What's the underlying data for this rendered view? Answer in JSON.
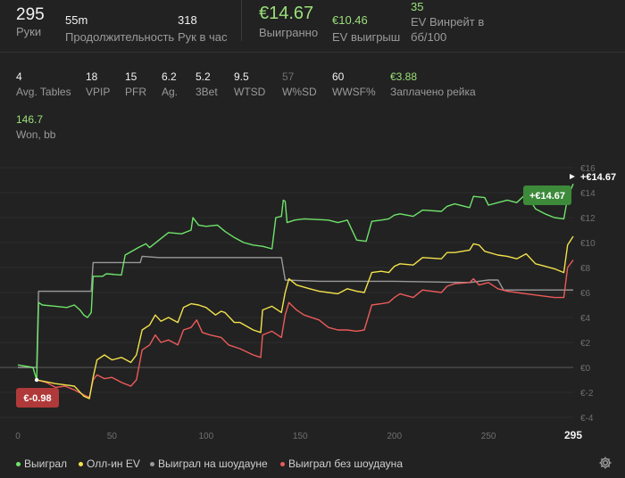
{
  "header": {
    "hands": {
      "value": "295",
      "label": "Руки"
    },
    "duration": {
      "value": "55m",
      "label": "Продолжительность"
    },
    "hands_per_hour": {
      "value": "318",
      "label": "Рук в час"
    },
    "won": {
      "value": "€14.67",
      "label": "Выигранно"
    },
    "ev_won": {
      "value": "€10.46",
      "label": "EV выигрыш"
    },
    "ev_winrate": {
      "value": "35",
      "label_line1": "EV Винрейт в",
      "label_line2": "бб/100"
    }
  },
  "stats": [
    {
      "value": "4",
      "label": "Avg. Tables"
    },
    {
      "value": "18",
      "label": "VPIP"
    },
    {
      "value": "15",
      "label": "PFR"
    },
    {
      "value": "6.2",
      "label": "Ag."
    },
    {
      "value": "5.2",
      "label": "3Bet"
    },
    {
      "value": "9.5",
      "label": "WTSD"
    },
    {
      "value": "57",
      "label": "W%SD"
    },
    {
      "value": "60",
      "label": "WWSF%"
    },
    {
      "value": "€3.88",
      "label": "Заплачено рейка"
    }
  ],
  "won_bb": {
    "value": "146.7",
    "label": "Won, bb"
  },
  "badges": {
    "end": "+€14.67",
    "min": "€-0.98",
    "end_label": "+€14.67"
  },
  "colors": {
    "won": "#6ee36a",
    "allin_ev": "#f2e24a",
    "showdown": "#9a9a9a",
    "non_showdown": "#ec5a5a",
    "badge_green": "#3c8a3a",
    "badge_red": "#b03a3a"
  },
  "chart_data": {
    "type": "line",
    "xlim": [
      0,
      295
    ],
    "ylim": [
      -4,
      16
    ],
    "x_ticks": [
      "0",
      "50",
      "100",
      "150",
      "200",
      "250"
    ],
    "x_end_label": "295",
    "y_ticks": [
      "€-4",
      "€-2",
      "€0",
      "€2",
      "€4",
      "€6",
      "€8",
      "€10",
      "€12",
      "€14",
      "€16"
    ],
    "series": [
      {
        "name": "Выиграл",
        "color": "#6ee36a",
        "points": [
          [
            0,
            0.2
          ],
          [
            8,
            0
          ],
          [
            10,
            -1
          ],
          [
            11,
            5.2
          ],
          [
            13,
            5.0
          ],
          [
            20,
            4.9
          ],
          [
            26,
            4.8
          ],
          [
            30,
            5.0
          ],
          [
            33,
            4.6
          ],
          [
            35,
            4.2
          ],
          [
            37,
            4.0
          ],
          [
            39,
            4.4
          ],
          [
            40,
            7.3
          ],
          [
            45,
            7.3
          ],
          [
            47,
            7.5
          ],
          [
            55,
            7.4
          ],
          [
            57,
            9.0
          ],
          [
            64,
            9.6
          ],
          [
            68,
            9.9
          ],
          [
            70,
            9.6
          ],
          [
            75,
            10.2
          ],
          [
            80,
            10.8
          ],
          [
            87,
            10.7
          ],
          [
            92,
            11.0
          ],
          [
            93,
            12.0
          ],
          [
            96,
            11.4
          ],
          [
            100,
            11.3
          ],
          [
            106,
            11.4
          ],
          [
            110,
            10.9
          ],
          [
            115,
            10.4
          ],
          [
            120,
            10.0
          ],
          [
            125,
            9.8
          ],
          [
            130,
            9.7
          ],
          [
            135,
            9.5
          ],
          [
            137,
            12.0
          ],
          [
            140,
            12.1
          ],
          [
            141,
            13.4
          ],
          [
            142,
            13.3
          ],
          [
            143,
            11.6
          ],
          [
            147,
            11.8
          ],
          [
            152,
            11.9
          ],
          [
            165,
            11.8
          ],
          [
            170,
            11.6
          ],
          [
            175,
            11.8
          ],
          [
            180,
            10.2
          ],
          [
            185,
            10.1
          ],
          [
            188,
            11.7
          ],
          [
            193,
            11.8
          ],
          [
            197,
            11.9
          ],
          [
            200,
            12.2
          ],
          [
            203,
            12.3
          ],
          [
            210,
            12.1
          ],
          [
            215,
            12.6
          ],
          [
            225,
            12.5
          ],
          [
            228,
            12.9
          ],
          [
            232,
            13.1
          ],
          [
            240,
            12.8
          ],
          [
            242,
            13.7
          ],
          [
            248,
            13.6
          ],
          [
            250,
            13.0
          ],
          [
            255,
            13.2
          ],
          [
            260,
            13.4
          ],
          [
            265,
            13.2
          ],
          [
            270,
            13.9
          ],
          [
            275,
            12.7
          ],
          [
            280,
            12.3
          ],
          [
            285,
            12.0
          ],
          [
            290,
            11.9
          ],
          [
            292,
            13.6
          ],
          [
            295,
            14.7
          ]
        ]
      },
      {
        "name": "Олл-ин EV",
        "color": "#f2e24a",
        "points": [
          [
            10,
            -1
          ],
          [
            20,
            -1.3
          ],
          [
            25,
            -1.4
          ],
          [
            30,
            -1.5
          ],
          [
            35,
            -2.3
          ],
          [
            38,
            -2.5
          ],
          [
            40,
            -0.8
          ],
          [
            42,
            0.6
          ],
          [
            46,
            1.0
          ],
          [
            50,
            0.6
          ],
          [
            55,
            0.8
          ],
          [
            60,
            0.4
          ],
          [
            63,
            1.0
          ],
          [
            66,
            3.0
          ],
          [
            70,
            3.4
          ],
          [
            73,
            4.2
          ],
          [
            76,
            3.7
          ],
          [
            80,
            4.0
          ],
          [
            85,
            3.6
          ],
          [
            88,
            4.8
          ],
          [
            92,
            5.1
          ],
          [
            96,
            5.0
          ],
          [
            100,
            4.8
          ],
          [
            105,
            4.2
          ],
          [
            108,
            4.5
          ],
          [
            110,
            4.4
          ],
          [
            115,
            3.6
          ],
          [
            118,
            3.6
          ],
          [
            125,
            3.0
          ],
          [
            129,
            2.8
          ],
          [
            130,
            4.6
          ],
          [
            135,
            4.9
          ],
          [
            140,
            4.4
          ],
          [
            142,
            6.0
          ],
          [
            144,
            7.1
          ],
          [
            148,
            6.6
          ],
          [
            155,
            6.3
          ],
          [
            160,
            6.1
          ],
          [
            165,
            6.0
          ],
          [
            170,
            5.9
          ],
          [
            175,
            6.3
          ],
          [
            180,
            6.1
          ],
          [
            184,
            6.0
          ],
          [
            188,
            7.6
          ],
          [
            193,
            7.7
          ],
          [
            197,
            7.6
          ],
          [
            200,
            8.1
          ],
          [
            203,
            8.3
          ],
          [
            210,
            8.2
          ],
          [
            215,
            8.8
          ],
          [
            225,
            8.7
          ],
          [
            228,
            9.2
          ],
          [
            232,
            9.2
          ],
          [
            240,
            9.4
          ],
          [
            242,
            9.9
          ],
          [
            245,
            9.8
          ],
          [
            248,
            9.3
          ],
          [
            255,
            9.0
          ],
          [
            260,
            8.9
          ],
          [
            265,
            8.7
          ],
          [
            270,
            9.1
          ],
          [
            275,
            8.3
          ],
          [
            280,
            8.1
          ],
          [
            285,
            7.9
          ],
          [
            290,
            7.6
          ],
          [
            292,
            9.8
          ],
          [
            295,
            10.5
          ]
        ]
      },
      {
        "name": "Выиграл на шоудауне",
        "color": "#9a9a9a",
        "points": [
          [
            0,
            0
          ],
          [
            10,
            0
          ],
          [
            11,
            6.1
          ],
          [
            20,
            6.1
          ],
          [
            39,
            6.1
          ],
          [
            40,
            8.4
          ],
          [
            50,
            8.4
          ],
          [
            65,
            8.4
          ],
          [
            66,
            8.9
          ],
          [
            75,
            8.8
          ],
          [
            100,
            8.8
          ],
          [
            140,
            8.8
          ],
          [
            142,
            7.0
          ],
          [
            160,
            6.9
          ],
          [
            200,
            6.9
          ],
          [
            240,
            6.8
          ],
          [
            250,
            7.0
          ],
          [
            255,
            7.0
          ],
          [
            258,
            6.2
          ],
          [
            280,
            6.2
          ],
          [
            295,
            6.2
          ]
        ]
      },
      {
        "name": "Выиграл без шоудауна",
        "color": "#ec5a5a",
        "points": [
          [
            10,
            -1
          ],
          [
            15,
            -1.2
          ],
          [
            20,
            -1.6
          ],
          [
            25,
            -1.5
          ],
          [
            30,
            -1.8
          ],
          [
            35,
            -2.2
          ],
          [
            38,
            -2.4
          ],
          [
            40,
            -1.0
          ],
          [
            42,
            -0.6
          ],
          [
            46,
            -0.9
          ],
          [
            50,
            -0.8
          ],
          [
            55,
            -1.2
          ],
          [
            60,
            -1.5
          ],
          [
            63,
            -1.0
          ],
          [
            66,
            1.4
          ],
          [
            70,
            1.8
          ],
          [
            73,
            2.6
          ],
          [
            76,
            2.0
          ],
          [
            80,
            2.2
          ],
          [
            85,
            1.8
          ],
          [
            88,
            3.0
          ],
          [
            92,
            3.2
          ],
          [
            95,
            3.8
          ],
          [
            98,
            2.8
          ],
          [
            102,
            2.6
          ],
          [
            108,
            2.4
          ],
          [
            112,
            1.8
          ],
          [
            118,
            1.5
          ],
          [
            125,
            1.0
          ],
          [
            129,
            0.8
          ],
          [
            130,
            2.6
          ],
          [
            135,
            2.9
          ],
          [
            140,
            2.4
          ],
          [
            142,
            4.2
          ],
          [
            144,
            5.2
          ],
          [
            148,
            4.6
          ],
          [
            152,
            4.2
          ],
          [
            160,
            3.8
          ],
          [
            165,
            3.2
          ],
          [
            170,
            3.0
          ],
          [
            175,
            3.0
          ],
          [
            180,
            2.9
          ],
          [
            184,
            3.0
          ],
          [
            188,
            5.0
          ],
          [
            193,
            5.1
          ],
          [
            197,
            5.2
          ],
          [
            200,
            5.6
          ],
          [
            203,
            5.9
          ],
          [
            210,
            5.6
          ],
          [
            215,
            6.2
          ],
          [
            225,
            6.0
          ],
          [
            228,
            6.5
          ],
          [
            232,
            6.7
          ],
          [
            240,
            6.8
          ],
          [
            242,
            7.1
          ],
          [
            245,
            6.6
          ],
          [
            250,
            6.8
          ],
          [
            255,
            6.3
          ],
          [
            260,
            6.1
          ],
          [
            265,
            6.0
          ],
          [
            270,
            5.9
          ],
          [
            275,
            5.8
          ],
          [
            280,
            5.7
          ],
          [
            285,
            5.6
          ],
          [
            290,
            5.6
          ],
          [
            292,
            8.0
          ],
          [
            295,
            8.6
          ]
        ]
      }
    ],
    "legend_position": "bottom-left",
    "grid": true
  }
}
